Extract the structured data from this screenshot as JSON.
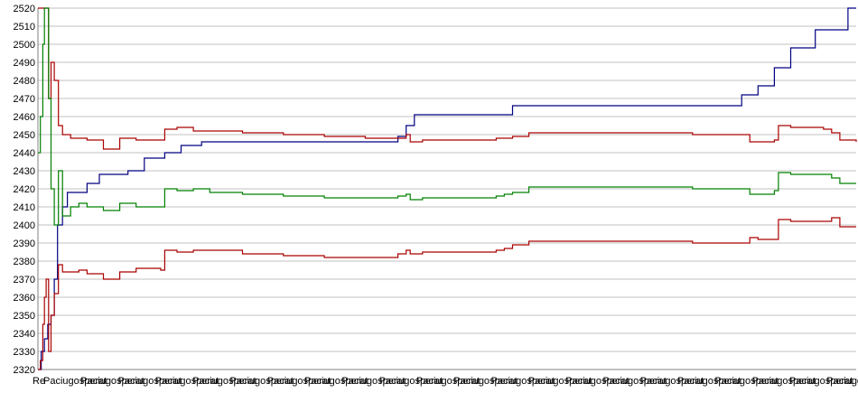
{
  "chart_data": {
    "type": "line",
    "title": "",
    "xlabel": "",
    "ylabel": "",
    "ylim": [
      2320,
      2520
    ],
    "yticks": [
      2320,
      2330,
      2340,
      2350,
      2360,
      2370,
      2380,
      2390,
      2400,
      2410,
      2420,
      2430,
      2440,
      2450,
      2460,
      2470,
      2480,
      2490,
      2500,
      2510,
      2520
    ],
    "grid": true,
    "legend": "none",
    "xlim": [
      0,
      100
    ],
    "x_tick_labels": [
      "Re",
      "Paciugosperat",
      "Paciugosperat",
      "Paciugosperat",
      "Paciugosperat",
      "Paciugosperat",
      "Paciugosperat",
      "Paciugosperat",
      "Paciugosperat",
      "Paciugosperat",
      "Paciugosperat",
      "Paciugosperat",
      "Paciugosperat",
      "Paciugosperat",
      "Paciugosperat",
      "Paciugosperat",
      "Paciugosperat",
      "Paciugosperat",
      "Paciugosperat",
      "Paciugosperat",
      "Paciugosperat",
      "Paciugosperat",
      "Paciugo"
    ],
    "series": [
      {
        "color": "#000080",
        "x": [
          0,
          0.4,
          0.8,
          1.2,
          1.6,
          2.0,
          2.4,
          3.0,
          3.6,
          4.5,
          6,
          7.5,
          9,
          11,
          13,
          15.5,
          17.5,
          20,
          25,
          30,
          35,
          40,
          44,
          45,
          46,
          48,
          52,
          56,
          58,
          60,
          70,
          80,
          85,
          86,
          87,
          88,
          89,
          90,
          92,
          94,
          95,
          97,
          99,
          100
        ],
        "values": [
          2320,
          2330,
          2337,
          2345,
          2350,
          2370,
          2400,
          2410,
          2418,
          2418,
          2423,
          2428,
          2428,
          2430,
          2437,
          2440,
          2444,
          2446,
          2446,
          2446,
          2446,
          2446,
          2449,
          2455,
          2461,
          2461,
          2461,
          2461,
          2466,
          2466,
          2466,
          2466,
          2466,
          2472,
          2472,
          2477,
          2477,
          2487,
          2498,
          2498,
          2508,
          2508,
          2520,
          2520
        ]
      },
      {
        "color": "#aa0000",
        "x": [
          0,
          0.3,
          0.6,
          0.8,
          1.0,
          1.3,
          1.6,
          2.0,
          2.5,
          3.0,
          4,
          5,
          6,
          8,
          10,
          12,
          14,
          15,
          15.5,
          17,
          19,
          21,
          25,
          30,
          35,
          40,
          44,
          45,
          45.5,
          47,
          52,
          56,
          57,
          58,
          60,
          70,
          80,
          86,
          87,
          88,
          90,
          90.5,
          92,
          96,
          97,
          98,
          100
        ],
        "values": [
          2520,
          2520,
          2520,
          2520,
          2520,
          2470,
          2490,
          2480,
          2455,
          2450,
          2448,
          2448,
          2447,
          2442,
          2448,
          2447,
          2447,
          2447,
          2453,
          2454,
          2452,
          2452,
          2451,
          2450,
          2449,
          2448,
          2448,
          2450,
          2446,
          2447,
          2447,
          2448,
          2448,
          2449,
          2451,
          2451,
          2450,
          2450,
          2446,
          2446,
          2447,
          2455,
          2454,
          2453,
          2451,
          2447,
          2446
        ]
      },
      {
        "color": "#008000",
        "x": [
          0,
          0.3,
          0.6,
          0.8,
          1.0,
          1.3,
          1.6,
          2.0,
          2.5,
          3.0,
          4,
          5,
          6,
          8,
          10,
          12,
          14,
          15,
          15.5,
          17,
          19,
          21,
          25,
          30,
          35,
          40,
          44,
          45,
          45.5,
          47,
          52,
          56,
          57,
          58,
          60,
          70,
          80,
          86,
          87,
          88,
          90,
          90.5,
          92,
          96,
          97,
          98,
          100
        ],
        "values": [
          2440,
          2460,
          2500,
          2520,
          2520,
          2470,
          2420,
          2400,
          2430,
          2405,
          2410,
          2412,
          2410,
          2408,
          2412,
          2410,
          2410,
          2410,
          2420,
          2419,
          2420,
          2418,
          2417,
          2416,
          2415,
          2415,
          2416,
          2417,
          2414,
          2415,
          2415,
          2416,
          2417,
          2418,
          2421,
          2421,
          2420,
          2420,
          2417,
          2417,
          2419,
          2429,
          2428,
          2428,
          2426,
          2423,
          2423
        ]
      },
      {
        "color": "#aa0000",
        "x": [
          0,
          0.3,
          0.6,
          0.8,
          1.0,
          1.3,
          1.6,
          2.0,
          2.5,
          3.0,
          4,
          5,
          6,
          8,
          10,
          12,
          14,
          15,
          15.5,
          17,
          19,
          21,
          25,
          30,
          35,
          40,
          44,
          45,
          45.5,
          47,
          52,
          56,
          57,
          58,
          60,
          70,
          80,
          86,
          87,
          88,
          90,
          90.5,
          92,
          96,
          97,
          98,
          100
        ],
        "values": [
          2320,
          2325,
          2345,
          2360,
          2370,
          2330,
          2350,
          2362,
          2378,
          2374,
          2374,
          2375,
          2373,
          2370,
          2374,
          2376,
          2376,
          2375,
          2386,
          2385,
          2386,
          2386,
          2384,
          2383,
          2382,
          2382,
          2384,
          2386,
          2384,
          2385,
          2385,
          2386,
          2387,
          2389,
          2391,
          2391,
          2390,
          2390,
          2393,
          2392,
          2392,
          2403,
          2402,
          2402,
          2404,
          2399,
          2399
        ]
      }
    ]
  }
}
